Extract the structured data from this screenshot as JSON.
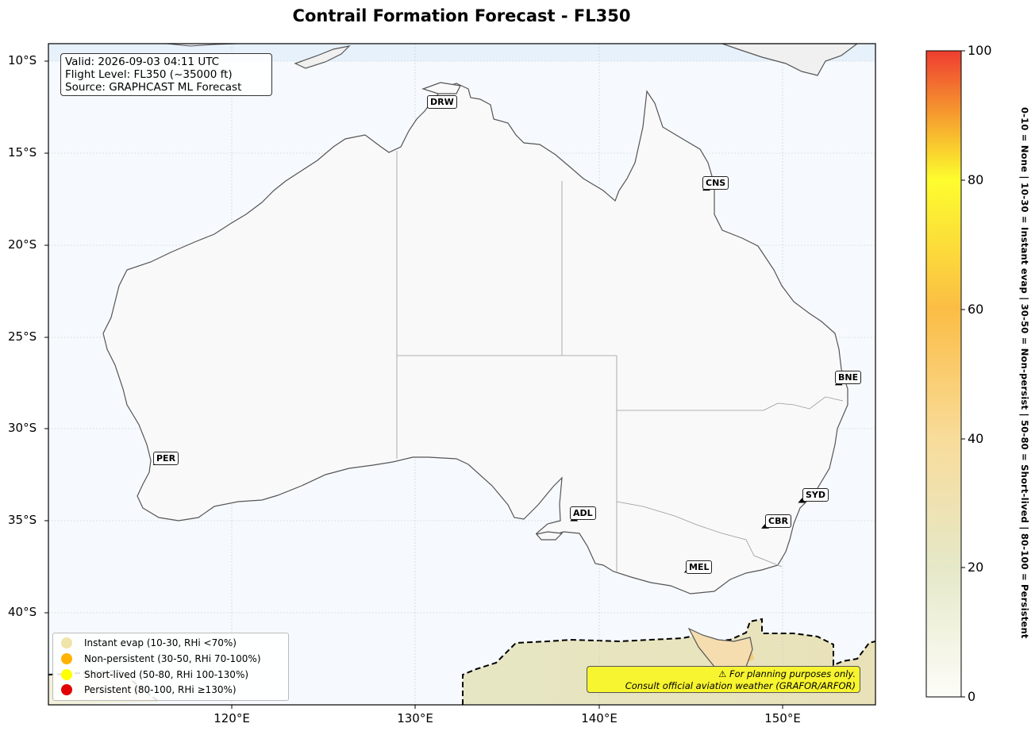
{
  "title": "Contrail Formation Forecast - FL350",
  "info": {
    "valid": "Valid: 2026-09-03 04:11 UTC",
    "flight_level": "Flight Level: FL350 (~35000 ft)",
    "source": "Source: GRAPHCAST ML Forecast"
  },
  "lat_ticks": [
    "10°S",
    "15°S",
    "20°S",
    "25°S",
    "30°S",
    "35°S",
    "40°S"
  ],
  "lon_ticks": [
    "120°E",
    "130°E",
    "140°E",
    "150°E"
  ],
  "cities": [
    {
      "code": "DRW",
      "lon": 130.8,
      "lat": -12.5
    },
    {
      "code": "CNS",
      "lon": 145.8,
      "lat": -17.0
    },
    {
      "code": "BNE",
      "lon": 153.0,
      "lat": -27.6
    },
    {
      "code": "PER",
      "lon": 115.9,
      "lat": -31.95
    },
    {
      "code": "SYD",
      "lon": 151.0,
      "lat": -34.0
    },
    {
      "code": "ADL",
      "lon": 138.6,
      "lat": -35.0
    },
    {
      "code": "CBR",
      "lon": 149.0,
      "lat": -35.4
    },
    {
      "code": "MEL",
      "lon": 144.8,
      "lat": -37.8
    }
  ],
  "legend": [
    {
      "label": "Instant evap (10-30, RHi <70%)",
      "color": "#f1e4a8"
    },
    {
      "label": "Non-persistent (30-50, RHi 70-100%)",
      "color": "#ffb300"
    },
    {
      "label": "Short-lived (50-80, RHi 100-130%)",
      "color": "#ffff00"
    },
    {
      "label": "Persistent (80-100, RHi ≥130%)",
      "color": "#e00000"
    }
  ],
  "disclaimer": {
    "line1": "⚠ For planning purposes only.",
    "line2": "Consult official aviation weather (GRAFOR/ARFOR)"
  },
  "colorbar": {
    "range": [
      0,
      100
    ],
    "ticks": [
      "0",
      "20",
      "40",
      "60",
      "80",
      "100"
    ],
    "label": "0-10 = None  |  10-30 = Instant evap  |  30-50 = Non-persist  |  50-80 = Short-lived  |  80-100 = Persistent",
    "stops": [
      "#fdfdf8",
      "#e5e8c8",
      "#f8dc9a",
      "#fbbd45",
      "#fdfd2e",
      "#ee3d30"
    ]
  },
  "map_extent": {
    "lon": [
      110,
      155
    ],
    "lat": [
      -45,
      -9
    ]
  },
  "colors": {
    "ocean": "#f6fafe",
    "land": "#f9f9f9",
    "coast": "#555555",
    "threshold_contour": "#000000"
  }
}
